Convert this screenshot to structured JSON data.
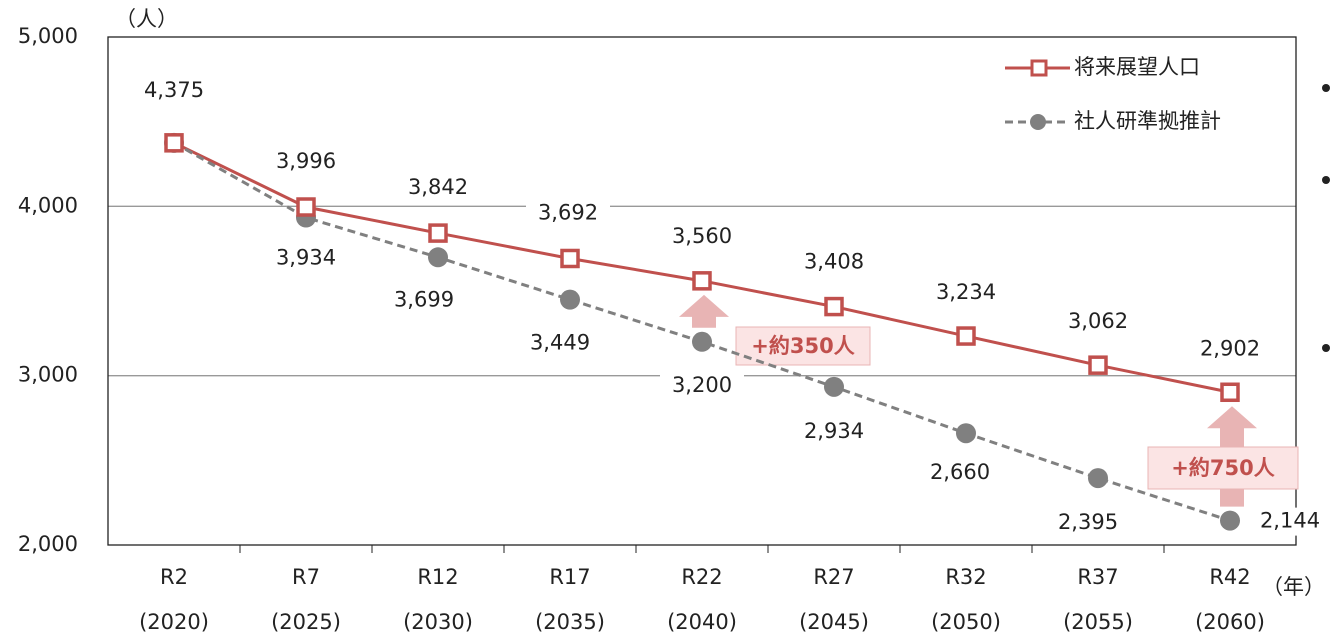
{
  "chart_data": {
    "type": "line",
    "y_unit": "（人）",
    "x_unit": "（年）",
    "categories": [
      [
        "R2",
        "(2020)"
      ],
      [
        "R7",
        "(2025)"
      ],
      [
        "R12",
        "(2030)"
      ],
      [
        "R17",
        "(2035)"
      ],
      [
        "R22",
        "(2040)"
      ],
      [
        "R27",
        "(2045)"
      ],
      [
        "R32",
        "(2050)"
      ],
      [
        "R37",
        "(2055)"
      ],
      [
        "R42",
        "(2060)"
      ]
    ],
    "series": [
      {
        "name": "将来展望人口",
        "color": "#c0504d",
        "marker": "square",
        "dashed": false,
        "values": [
          4375,
          3996,
          3842,
          3692,
          3560,
          3408,
          3234,
          3062,
          2902
        ],
        "value_labels": [
          "4,375",
          "3,996",
          "3,842",
          "3,692",
          "3,560",
          "3,408",
          "3,234",
          "3,062",
          "2,902"
        ]
      },
      {
        "name": "社人研準拠推計",
        "color": "#808080",
        "marker": "circle",
        "dashed": true,
        "values": [
          4375,
          3934,
          3699,
          3449,
          3200,
          2934,
          2660,
          2395,
          2144
        ],
        "value_labels": [
          null,
          "3,934",
          "3,699",
          "3,449",
          "3,200",
          "2,934",
          "2,660",
          "2,395",
          "2,144"
        ]
      }
    ],
    "ylim": [
      2000,
      5000
    ],
    "yticks": [
      {
        "value": 2000,
        "label": "2,000"
      },
      {
        "value": 3000,
        "label": "3,000"
      },
      {
        "value": 4000,
        "label": "4,000"
      },
      {
        "value": 5000,
        "label": "5,000"
      }
    ],
    "grid": true,
    "legend": "upper right",
    "annotations": [
      {
        "text": "+約350人",
        "category": 4
      },
      {
        "text": "+約750人",
        "category": 8
      }
    ]
  }
}
